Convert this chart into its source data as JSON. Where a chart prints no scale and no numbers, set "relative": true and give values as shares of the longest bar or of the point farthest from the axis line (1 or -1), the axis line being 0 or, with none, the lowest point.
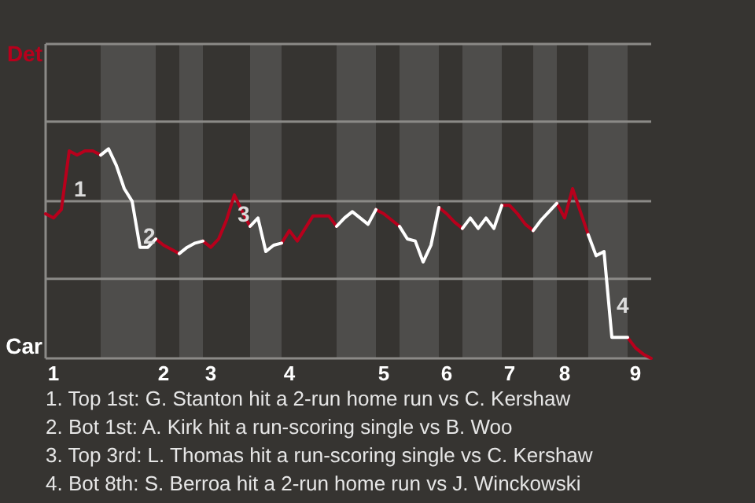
{
  "chart_data": {
    "type": "line",
    "relative": true,
    "categories": [
      null,
      "1",
      null,
      null,
      null,
      null,
      null,
      null,
      null,
      null,
      null,
      null,
      null,
      null,
      null,
      "2",
      null,
      null,
      null,
      null,
      null,
      "3",
      null,
      null,
      null,
      null,
      null,
      null,
      null,
      null,
      null,
      "4",
      null,
      null,
      null,
      null,
      null,
      null,
      null,
      null,
      null,
      null,
      null,
      "5",
      null,
      null,
      null,
      null,
      null,
      null,
      null,
      "6",
      null,
      null,
      null,
      null,
      null,
      null,
      null,
      "7",
      null,
      null,
      null,
      null,
      null,
      null,
      "8",
      null,
      null,
      null,
      null,
      null,
      null,
      null,
      null,
      "9",
      null,
      null
    ],
    "ref_lines": [
      {
        "axis": "y",
        "value": 0.38,
        "color": "#8b8a87"
      },
      {
        "axis": "y",
        "value": 0.75,
        "color": "#8b8a87"
      },
      {
        "axis": "y",
        "value": 1.13,
        "color": "#8b8a87"
      },
      {
        "axis": "y",
        "value": 1.5,
        "color": "#8b8a87"
      }
    ],
    "series": [
      {
        "color": "#b8001c",
        "values": [
          0.69,
          0.67,
          0.71,
          0.99,
          0.97,
          0.99,
          0.99,
          0.97,
          null,
          null,
          null,
          null,
          null,
          null,
          0.57,
          0.54,
          0.52,
          0.5,
          null,
          null,
          0.56,
          0.53,
          0.57,
          0.66,
          0.78,
          0.7,
          0.63,
          null,
          null,
          null,
          0.55,
          0.61,
          0.56,
          0.62,
          0.68,
          0.68,
          0.68,
          0.63,
          null,
          null,
          null,
          null,
          0.71,
          0.69,
          0.66,
          0.63,
          null,
          null,
          null,
          null,
          0.72,
          0.69,
          0.65,
          0.62,
          null,
          null,
          null,
          null,
          0.73,
          0.73,
          0.69,
          0.64,
          0.61,
          null,
          null,
          0.74,
          0.67,
          0.81,
          0.7,
          0.59,
          null,
          null,
          null,
          null,
          0.1,
          0.05,
          0.02,
          0
        ]
      },
      {
        "color": "#ffffff",
        "values": [
          null,
          null,
          null,
          null,
          null,
          null,
          null,
          0.97,
          1,
          0.92,
          0.81,
          0.75,
          0.53,
          0.53,
          0.57,
          null,
          null,
          0.5,
          0.53,
          0.55,
          0.56,
          null,
          null,
          null,
          null,
          null,
          0.63,
          0.67,
          0.51,
          0.54,
          0.55,
          null,
          null,
          null,
          null,
          null,
          null,
          0.63,
          0.67,
          0.7,
          0.67,
          0.64,
          0.71,
          null,
          null,
          0.63,
          0.57,
          0.56,
          0.46,
          0.54,
          0.72,
          null,
          null,
          0.62,
          0.67,
          0.62,
          0.67,
          0.62,
          0.73,
          null,
          null,
          null,
          0.61,
          0.66,
          0.7,
          0.74,
          null,
          null,
          null,
          0.59,
          0.49,
          0.51,
          0.1,
          0.1,
          0.1,
          null,
          null,
          null
        ]
      }
    ],
    "annotations": [
      "Det",
      "Car",
      "1",
      "2",
      "3",
      "4",
      "1. Top 1st: G. Stanton hit a 2-run home run vs C. Kershaw",
      "2. Bot 1st: A. Kirk hit a run-scoring single vs B. Woo",
      "3. Top 3rd: L. Thomas hit a run-scoring single vs C. Kershaw",
      "4. Bot 8th: S. Berroa hit a 2-run home run vs J. Winckowski"
    ]
  }
}
